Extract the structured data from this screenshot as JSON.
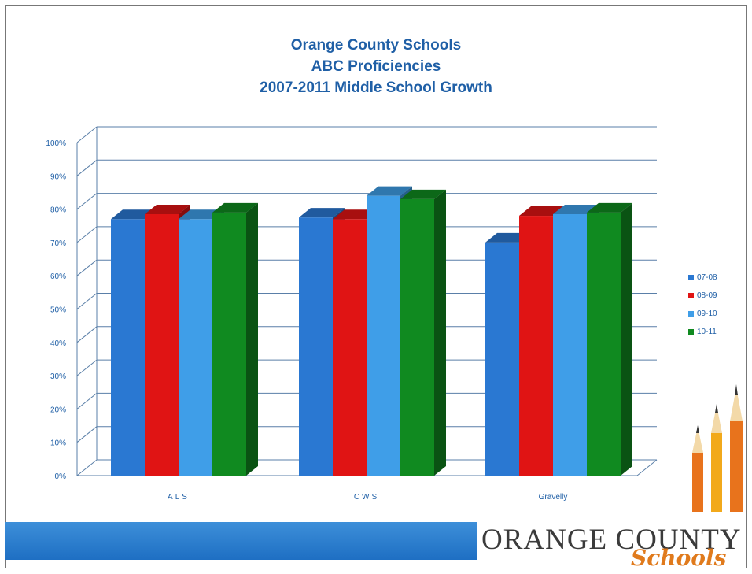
{
  "title_lines": [
    "Orange County Schools",
    "ABC Proficiencies",
    "2007-2011 Middle School Growth"
  ],
  "chart_data": {
    "type": "bar",
    "categories": [
      "ALS",
      "CWS",
      "Gravelly"
    ],
    "series": [
      {
        "name": "07-08",
        "values": [
          77,
          77.5,
          70
        ],
        "color": "#2a78d2"
      },
      {
        "name": "08-09",
        "values": [
          78.5,
          77,
          78
        ],
        "color": "#e01414"
      },
      {
        "name": "09-10",
        "values": [
          77,
          84,
          78.5
        ],
        "color": "#3f9ee8"
      },
      {
        "name": "10-11",
        "values": [
          79,
          83,
          79
        ],
        "color": "#108a20"
      }
    ],
    "yticks": [
      "0%",
      "10%",
      "20%",
      "30%",
      "40%",
      "50%",
      "60%",
      "70%",
      "80%",
      "90%",
      "100%"
    ],
    "ylim": [
      0,
      100
    ],
    "grid": true,
    "legend_position": "right",
    "accent_color": "#1f5fa6"
  },
  "footer": {
    "logo_main": "ORANGE COUNTY",
    "logo_sub": "Schools",
    "bar_color": "#2a7fd1"
  }
}
